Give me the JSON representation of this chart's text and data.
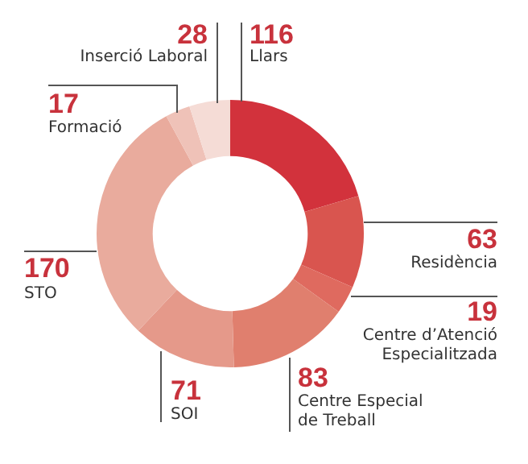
{
  "chart_data": {
    "type": "donut",
    "categories": [
      "Llars",
      "Residència",
      "Centre d’Atenció Especialitzada",
      "Centre Especial de Treball",
      "SOI",
      "STO",
      "Formació",
      "Inserció Laboral"
    ],
    "values": [
      116,
      63,
      19,
      83,
      71,
      170,
      17,
      28
    ],
    "colors": [
      "#d2323c",
      "#d9554f",
      "#df6a5f",
      "#e07f6e",
      "#e5998a",
      "#e9ab9d",
      "#efc2b8",
      "#f5dcd6"
    ],
    "data_labels": true,
    "legend": false
  }
}
